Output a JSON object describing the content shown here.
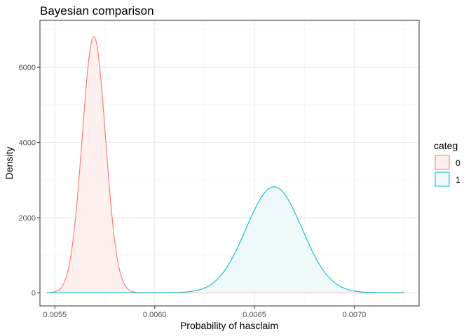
{
  "chart_data": {
    "type": "area",
    "title": "Bayesian comparison",
    "xlabel": "Probability of hasclaim",
    "ylabel": "Density",
    "xlim": [
      0.005425,
      0.007325
    ],
    "ylim": [
      -350,
      7250
    ],
    "x_ticks": [
      0.0055,
      0.006,
      0.0065,
      0.007
    ],
    "x_tick_labels": [
      "0.0055",
      "0.0060",
      "0.0065",
      "0.0070"
    ],
    "y_ticks": [
      0,
      2000,
      4000,
      6000
    ],
    "y_tick_labels": [
      "0",
      "2000",
      "4000",
      "6000"
    ],
    "grid": true,
    "legend": {
      "title": "categ",
      "position": "right"
    },
    "x_range": [
      0.00546,
      0.00725
    ],
    "series": [
      {
        "name": "0",
        "color": "#F8766D",
        "fill": "#FFF0F0",
        "dist": "density",
        "mean": 0.005695,
        "sd": 5.85e-05,
        "peak": 6820
      },
      {
        "name": "1",
        "color": "#00BFC4",
        "fill": "#F0F9FA",
        "dist": "density",
        "mean": 0.006598,
        "sd": 0.00014,
        "peak": 2820
      }
    ]
  }
}
